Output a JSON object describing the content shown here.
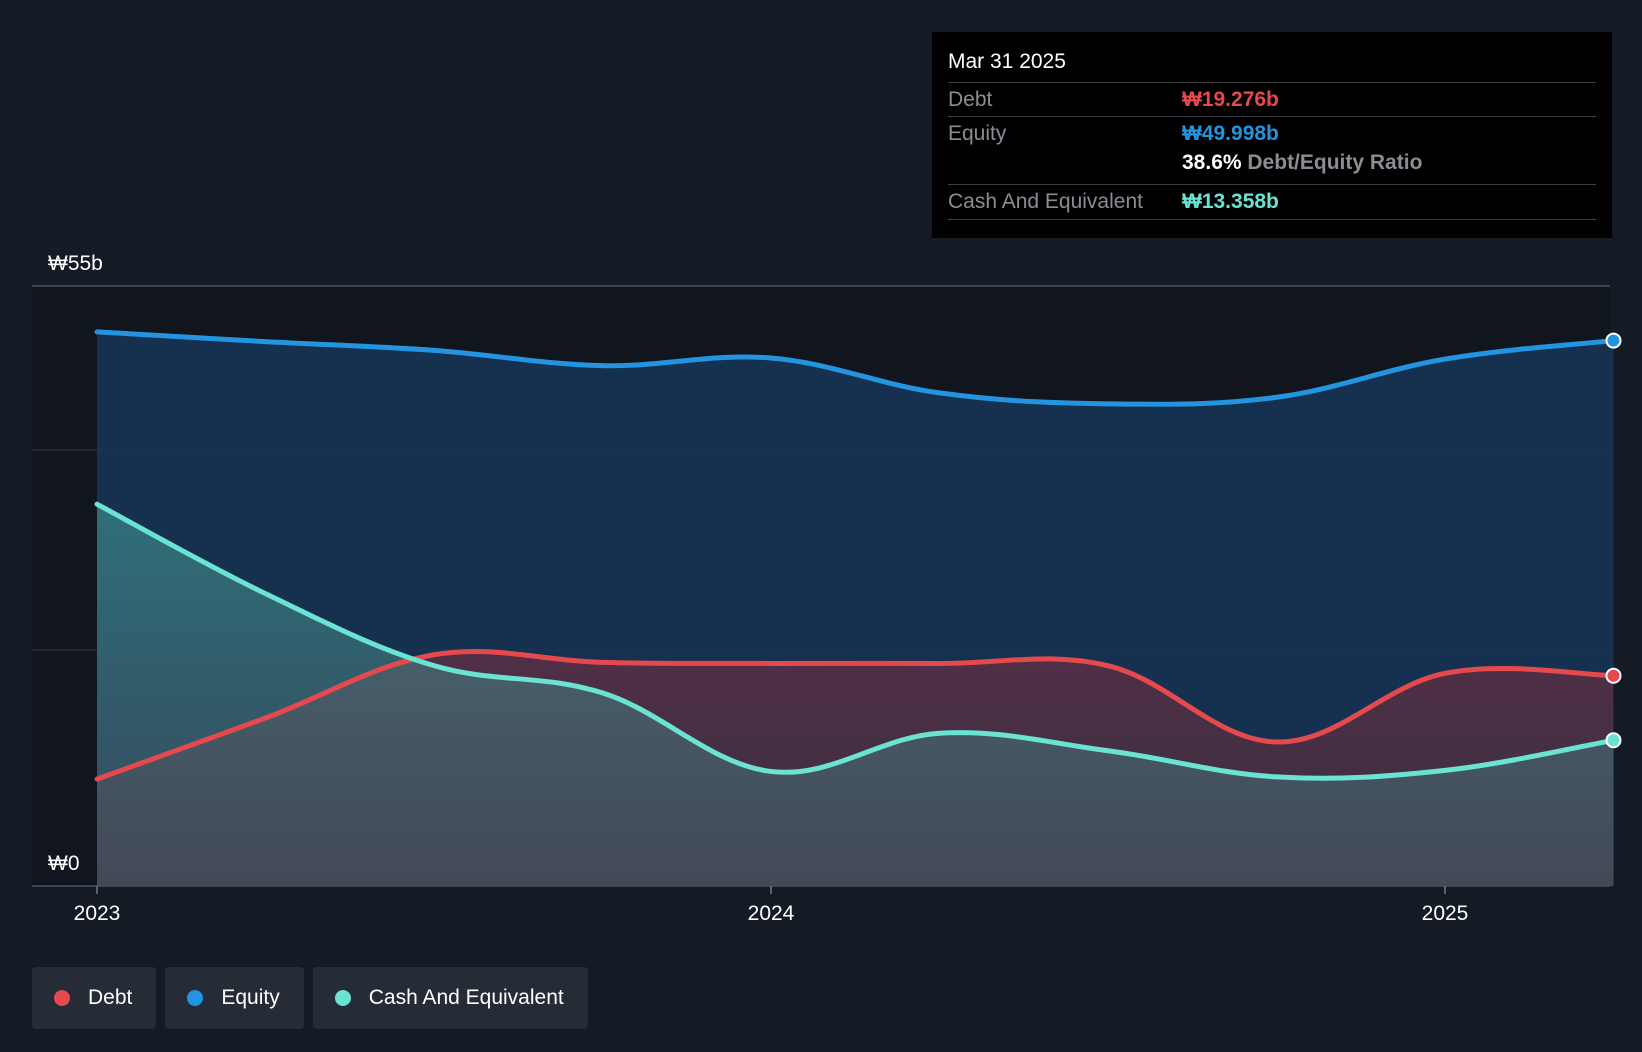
{
  "chart_data": {
    "type": "area",
    "x": [
      2023.0,
      2023.25,
      2023.5,
      2023.75,
      2024.0,
      2024.25,
      2024.5,
      2024.75,
      2025.0,
      2025.25
    ],
    "xticks": [
      "2023",
      "2024",
      "2025"
    ],
    "ylim": [
      0,
      55
    ],
    "ytick_labels": {
      "top": "₩55b",
      "bottom": "₩0"
    },
    "grid": true,
    "series": [
      {
        "name": "Debt",
        "color": "#e5484d",
        "values": [
          9.8,
          15.4,
          21.2,
          20.5,
          20.4,
          20.4,
          20.2,
          13.2,
          19.5,
          19.276
        ]
      },
      {
        "name": "Equity",
        "color": "#2394df",
        "values": [
          50.8,
          49.9,
          49.1,
          47.7,
          48.4,
          45.2,
          44.2,
          44.8,
          48.3,
          49.998
        ]
      },
      {
        "name": "Cash And Equivalent",
        "color": "#6ae3d2",
        "values": [
          35.0,
          26.8,
          20.2,
          17.7,
          10.5,
          14.0,
          12.4,
          10.0,
          10.6,
          13.358
        ]
      }
    ],
    "legend_position": "bottom-left"
  },
  "tooltip": {
    "date": "Mar 31 2025",
    "debt_label": "Debt",
    "debt_value": "₩19.276b",
    "equity_label": "Equity",
    "equity_value": "₩49.998b",
    "ratio_value": "38.6%",
    "ratio_label": "Debt/Equity Ratio",
    "cash_label": "Cash And Equivalent",
    "cash_value": "₩13.358b"
  },
  "legend": {
    "debt": "Debt",
    "equity": "Equity",
    "cash": "Cash And Equivalent"
  },
  "colors": {
    "debt": "#e5484d",
    "equity": "#2394df",
    "cash": "#6ae3d2",
    "background": "#151b24"
  }
}
